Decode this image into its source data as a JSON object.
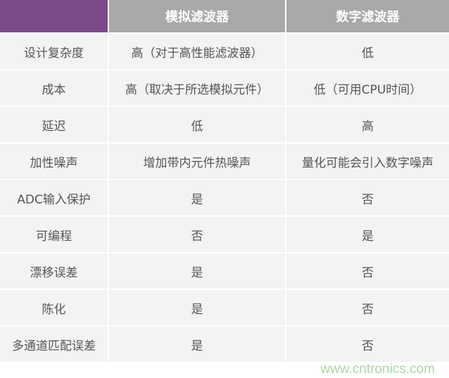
{
  "header": {
    "corner": "",
    "col1": "模拟滤波器",
    "col2": "数字滤波器"
  },
  "rows": [
    {
      "label": "设计复杂度",
      "analog": "高（对于高性能滤波器）",
      "digital": "低"
    },
    {
      "label": "成本",
      "analog": "高（取决于所选模拟元件）",
      "digital": "低（可用CPU时间）"
    },
    {
      "label": "延迟",
      "analog": "低",
      "digital": "高"
    },
    {
      "label": "加性噪声",
      "analog": "增加带内元件热噪声",
      "digital": "量化可能会引入数字噪声"
    },
    {
      "label": "ADC输入保护",
      "analog": "是",
      "digital": "否"
    },
    {
      "label": "可编程",
      "analog": "否",
      "digital": "是"
    },
    {
      "label": "漂移误差",
      "analog": "是",
      "digital": "否"
    },
    {
      "label": "陈化",
      "analog": "是",
      "digital": "否"
    },
    {
      "label": "多通道匹配误差",
      "analog": "是",
      "digital": "否"
    }
  ],
  "watermark": "www.cntronics.com",
  "colors": {
    "corner": "#7b4a8b",
    "header": "#a9a9a9",
    "cell": "#f3f3f3"
  }
}
